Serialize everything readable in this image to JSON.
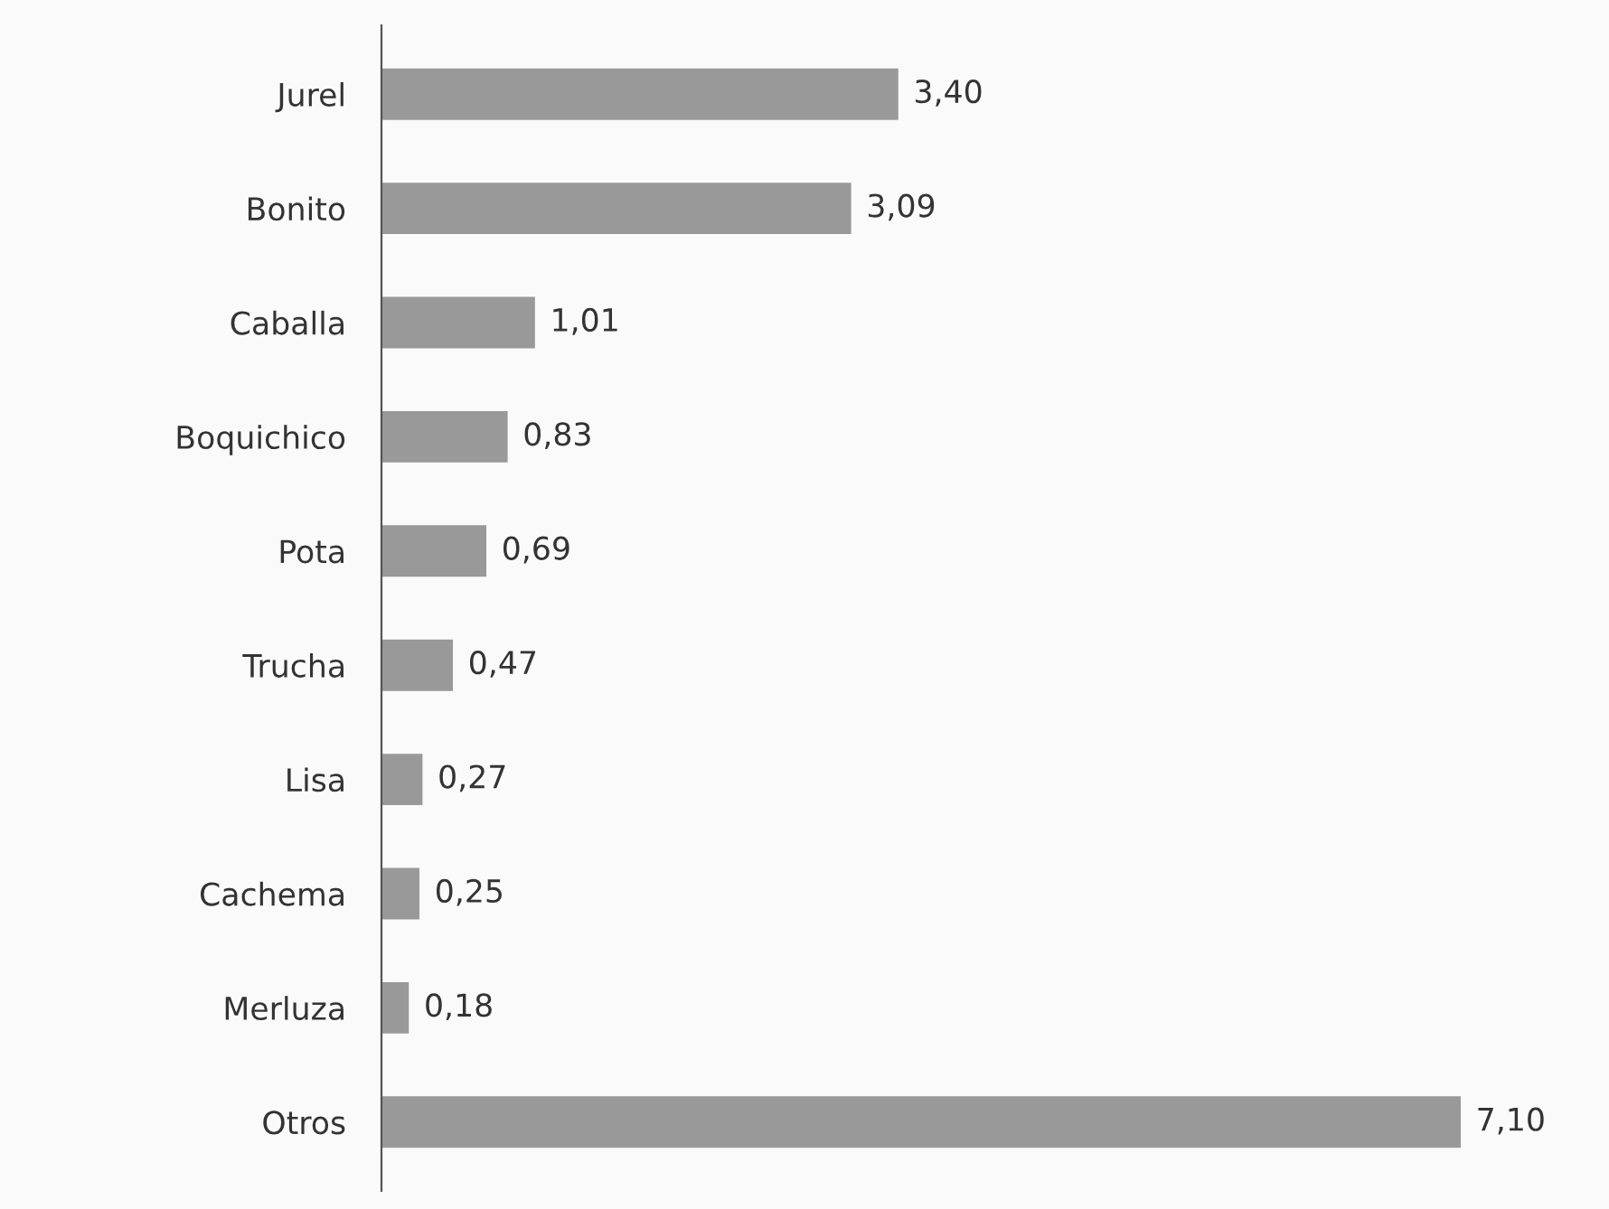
{
  "chart_data": {
    "type": "bar",
    "orientation": "horizontal",
    "categories": [
      "Jurel",
      "Bonito",
      "Caballa",
      "Boquichico",
      "Pota",
      "Trucha",
      "Lisa",
      "Cachema",
      "Merluza",
      "Otros"
    ],
    "values": [
      3.4,
      3.09,
      1.01,
      0.83,
      0.69,
      0.47,
      0.27,
      0.25,
      0.18,
      7.1
    ],
    "value_labels": [
      "3,40",
      "3,09",
      "1,01",
      "0,83",
      "0,69",
      "0,47",
      "0,27",
      "0,25",
      "0,18",
      "7,10"
    ],
    "color": "#999999",
    "grid": false,
    "legend": false,
    "tick_labels": "y"
  }
}
